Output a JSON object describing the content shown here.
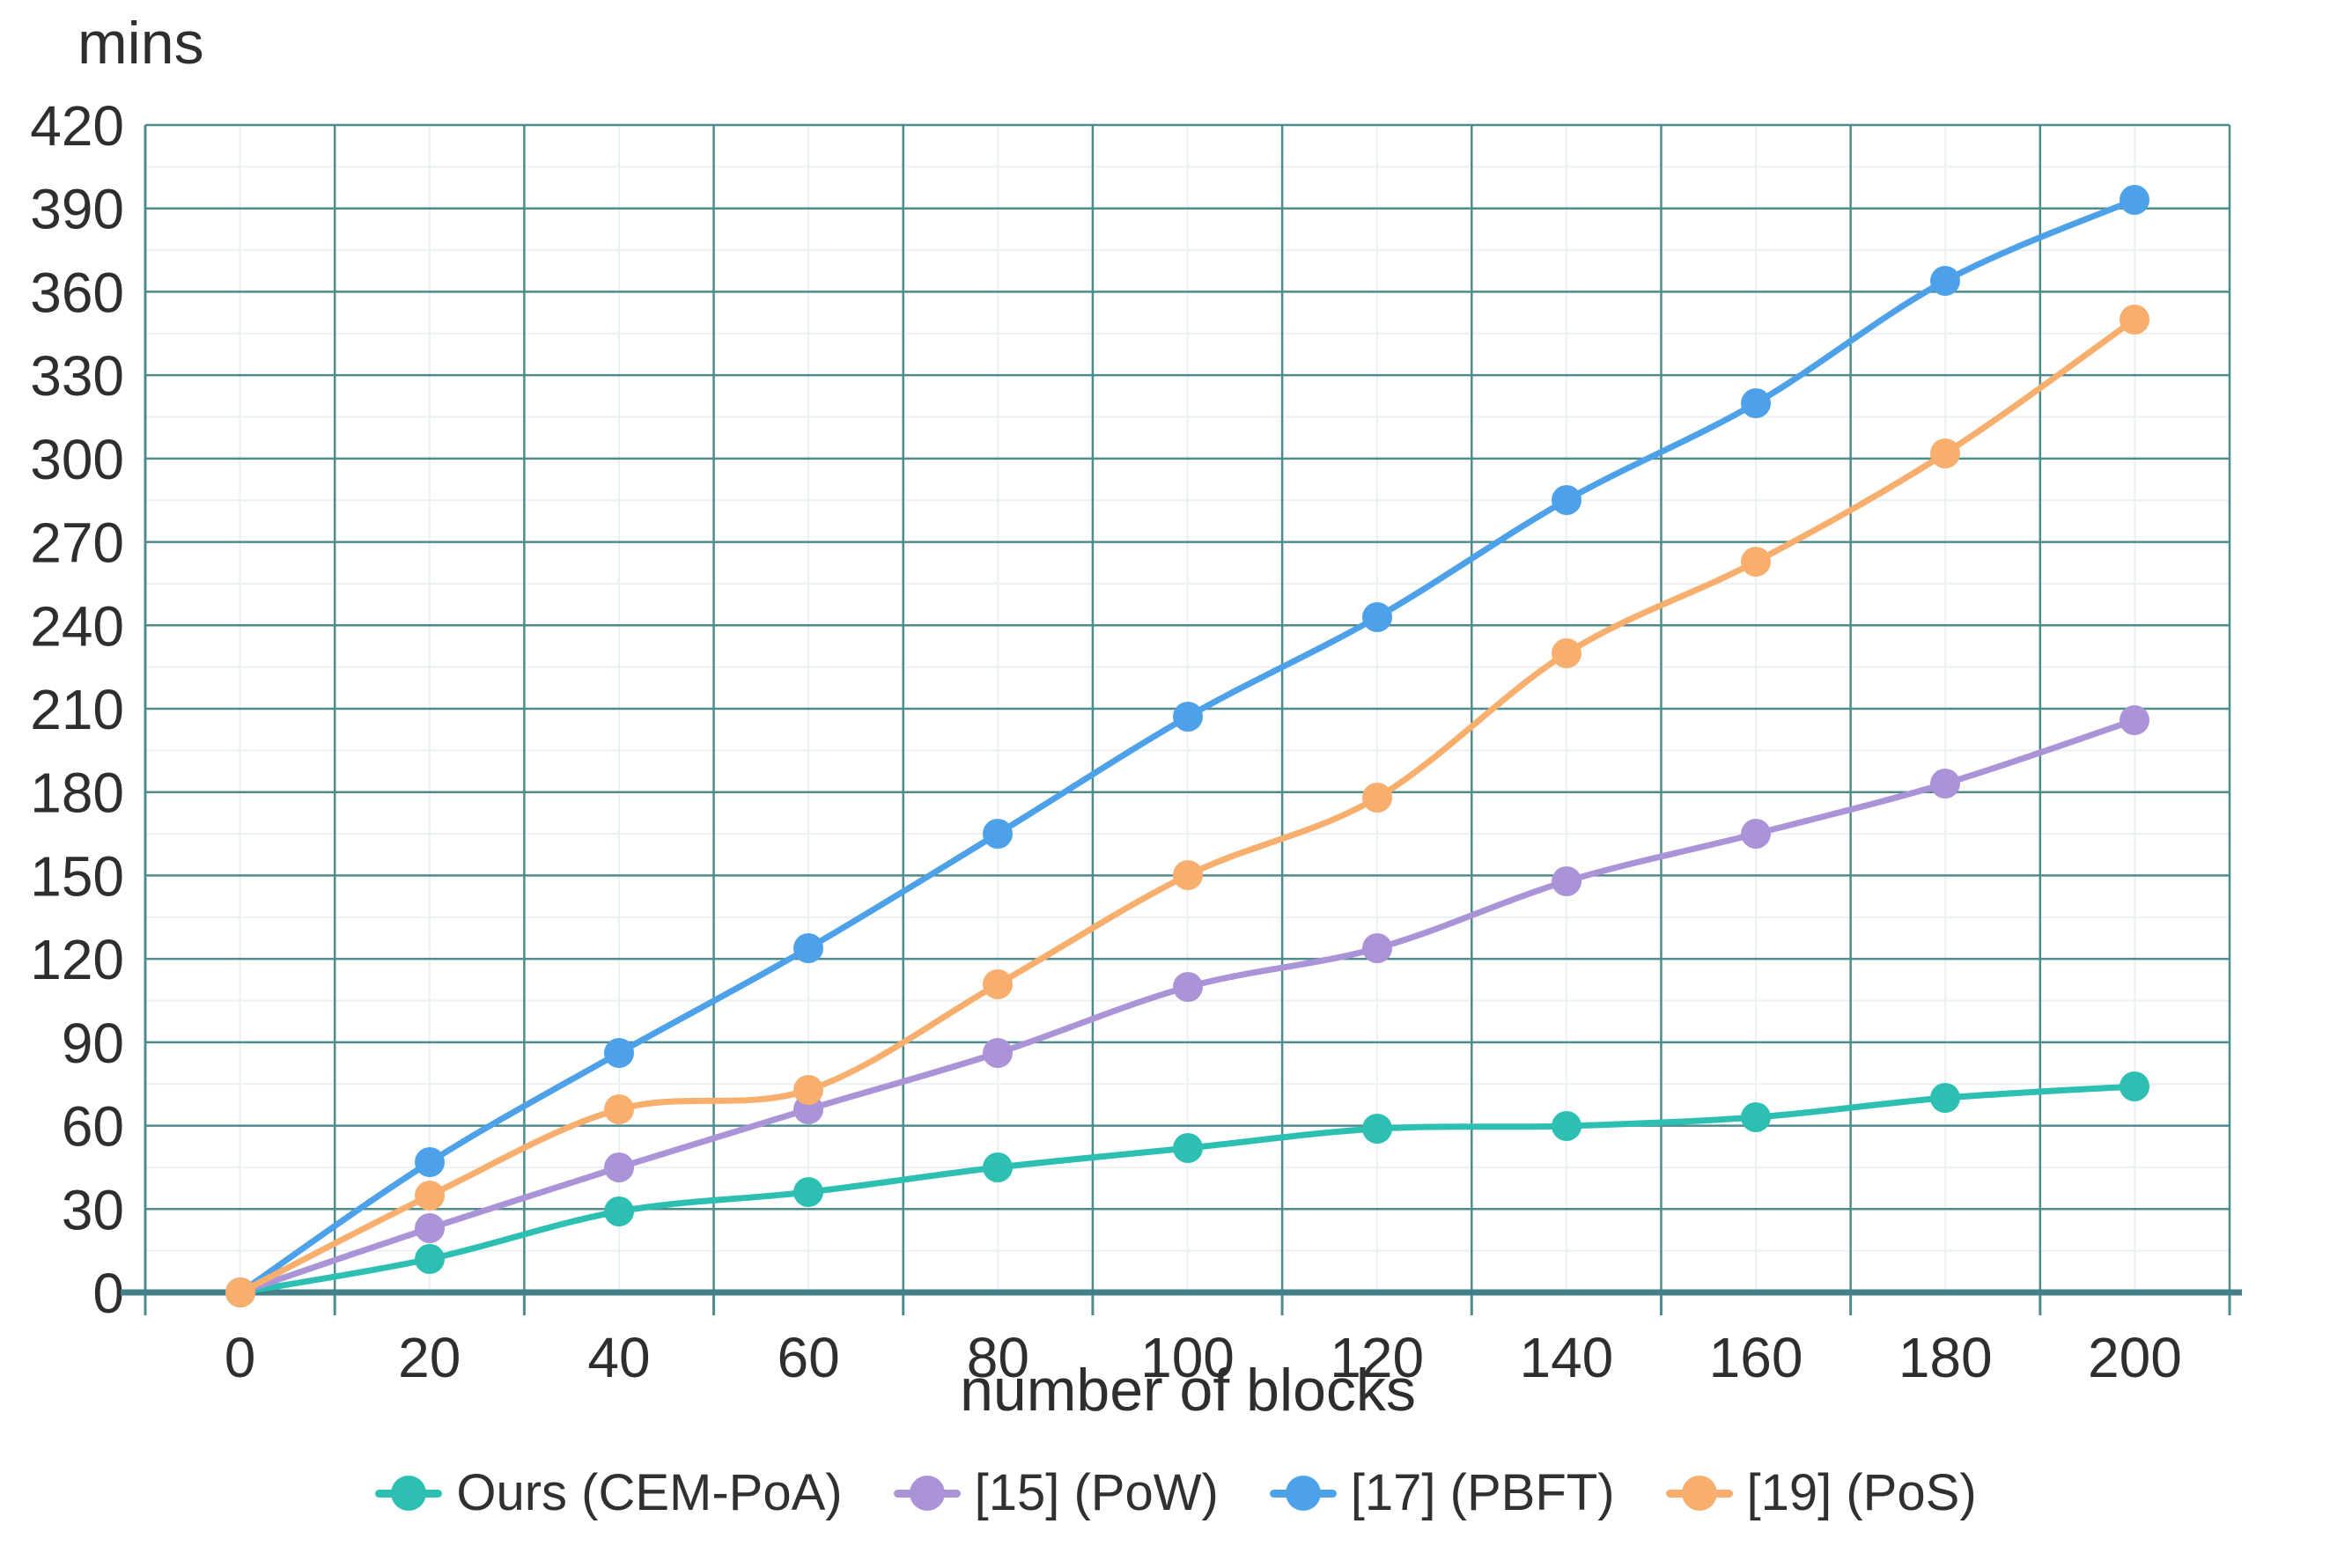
{
  "chart_data": {
    "type": "line",
    "title": "",
    "ylabel": "mins",
    "xlabel": "number of blocks",
    "x": [
      0,
      20,
      40,
      60,
      80,
      100,
      120,
      140,
      160,
      180,
      200
    ],
    "y_ticks": [
      0,
      30,
      60,
      90,
      120,
      150,
      180,
      210,
      240,
      270,
      300,
      330,
      360,
      390,
      420
    ],
    "ylim": [
      0,
      420
    ],
    "grid": true,
    "smooth": true,
    "legend_position": "bottom",
    "series": [
      {
        "name": "Ours (CEM-PoA)",
        "color": "#2ebfb3",
        "values": [
          0,
          12,
          29,
          36,
          45,
          52,
          59,
          60,
          63,
          70,
          74
        ]
      },
      {
        "name": "[15] (PoW)",
        "color": "#ab93d8",
        "values": [
          0,
          23,
          45,
          66,
          86,
          110,
          124,
          148,
          165,
          183,
          206
        ]
      },
      {
        "name": "[17] (PBFT)",
        "color": "#4da1e8",
        "values": [
          0,
          47,
          86,
          124,
          165,
          207,
          243,
          285,
          320,
          364,
          393
        ]
      },
      {
        "name": "[19] (PoS)",
        "color": "#f8ae6c",
        "values": [
          0,
          35,
          66,
          73,
          111,
          150,
          178,
          230,
          263,
          302,
          350
        ]
      }
    ]
  },
  "colors": {
    "major_grid": "#4e8b8d",
    "minor_grid": "#e9f1f2",
    "axis_line": "#43808a",
    "tick_text": "#2e2e2e",
    "legend_text": "#303030"
  }
}
